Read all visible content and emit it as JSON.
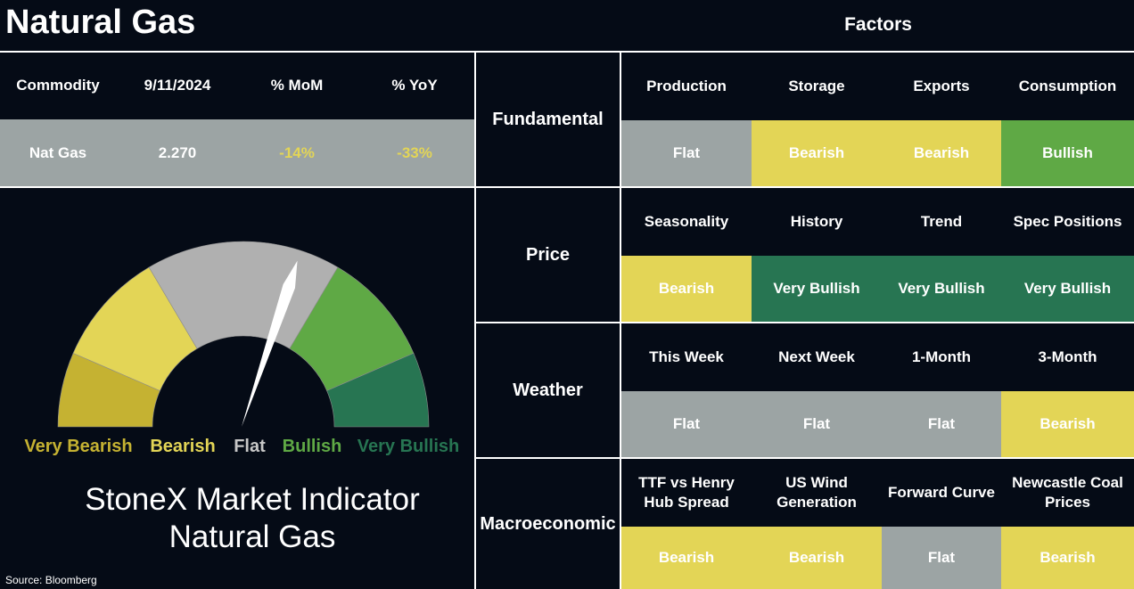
{
  "colors": {
    "background": "#050b16",
    "flat": "#9ca4a4",
    "bearish": "#e3d556",
    "bullish": "#5fa945",
    "very_bullish": "#277552",
    "very_bearish": "#c5b232",
    "gauge_flat": "#b0b0b0",
    "pct_text": "#e3d556"
  },
  "header": {
    "title": "Natural Gas",
    "factors_title": "Factors"
  },
  "commodity_table": {
    "headers": [
      "Commodity",
      "9/11/2024",
      "% MoM",
      "% YoY"
    ],
    "row": [
      "Nat Gas",
      "2.270",
      "-14%",
      "-33%"
    ]
  },
  "gauge": {
    "labels": [
      "Very Bearish",
      "Bearish",
      "Flat",
      "Bullish",
      "Very Bullish"
    ],
    "label_colors": [
      "#c5b232",
      "#e3d556",
      "#c7c7c7",
      "#5fa945",
      "#277552"
    ],
    "segment_names": [
      "very-bearish",
      "bearish",
      "flat",
      "bullish",
      "very-bullish"
    ],
    "needle_value": 0.6,
    "indicator_line1": "StoneX Market Indicator",
    "indicator_line2": "Natural Gas"
  },
  "factors": [
    {
      "category": "Fundamental",
      "items": [
        "Production",
        "Storage",
        "Exports",
        "Consumption"
      ],
      "values": [
        "Flat",
        "Bearish",
        "Bearish",
        "Bullish"
      ]
    },
    {
      "category": "Price",
      "items": [
        "Seasonality",
        "History",
        "Trend",
        "Spec Positions"
      ],
      "values": [
        "Bearish",
        "Very Bullish",
        "Very Bullish",
        "Very Bullish"
      ]
    },
    {
      "category": "Weather",
      "items": [
        "This Week",
        "Next Week",
        "1-Month",
        "3-Month"
      ],
      "values": [
        "Flat",
        "Flat",
        "Flat",
        "Bearish"
      ]
    },
    {
      "category": "Macroeconomic",
      "items": [
        "TTF vs Henry Hub Spread",
        "US Wind Generation",
        "Forward Curve",
        "Newcastle Coal Prices"
      ],
      "values": [
        "Bearish",
        "Bearish",
        "Flat",
        "Bearish"
      ]
    }
  ],
  "source": "Source: Bloomberg"
}
